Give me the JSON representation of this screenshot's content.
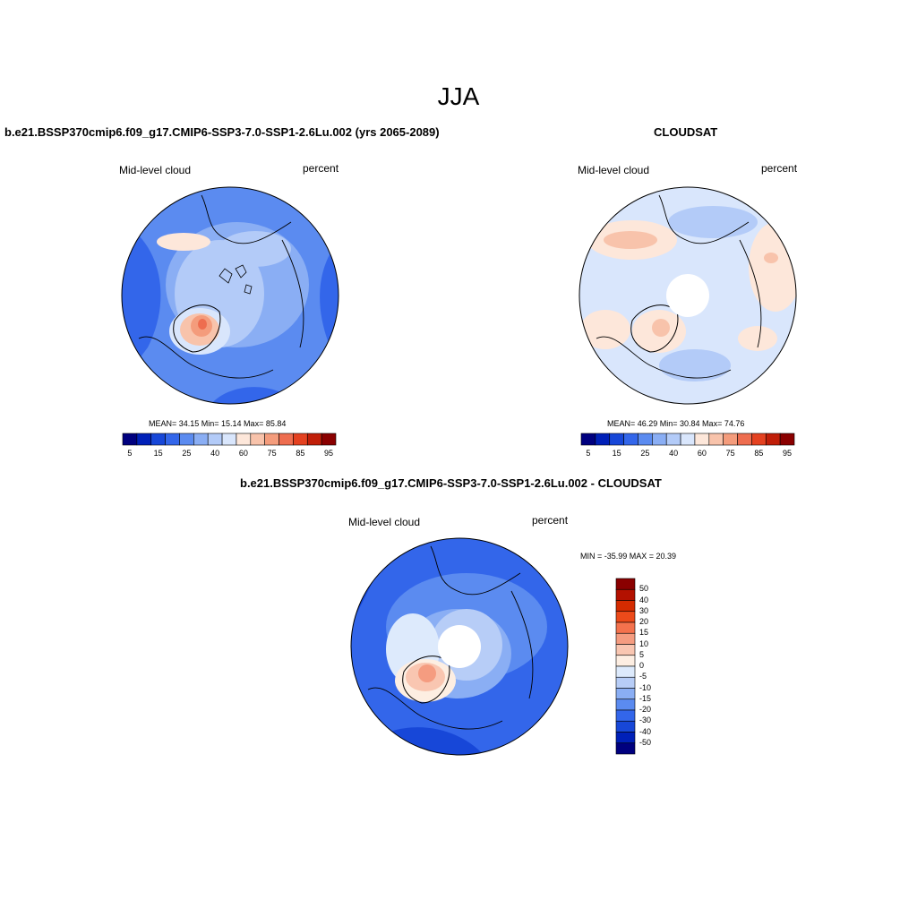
{
  "figure": {
    "season": "JJA",
    "panels": [
      {
        "title": "b.e21.BSSP370cmip6.f09_g17.CMIP6-SSP3-7.0-SSP1-2.6Lu.002 (yrs 2065-2089)",
        "left_label": "Mid-level cloud",
        "right_label": "percent",
        "stats": "MEAN=  34.15  Min=  15.14  Max=  85.84",
        "colorbar_ticks": [
          "5",
          "15",
          "25",
          "40",
          "60",
          "75",
          "85",
          "95"
        ]
      },
      {
        "title": "CLOUDSAT",
        "left_label": "Mid-level cloud",
        "right_label": "percent",
        "stats": "MEAN=  46.29  Min=  30.84  Max=  74.76",
        "colorbar_ticks": [
          "5",
          "15",
          "25",
          "40",
          "60",
          "75",
          "85",
          "95"
        ]
      },
      {
        "title": "b.e21.BSSP370cmip6.f09_g17.CMIP6-SSP3-7.0-SSP1-2.6Lu.002 - CLOUDSAT",
        "left_label": "Mid-level cloud",
        "right_label": "percent",
        "stats": "MIN = -35.99 MAX =  20.39",
        "colorbar_ticks": [
          "50",
          "40",
          "30",
          "20",
          "15",
          "10",
          "5",
          "0",
          "-5",
          "-10",
          "-15",
          "-20",
          "-30",
          "-40",
          "-50"
        ]
      }
    ]
  },
  "colors": {
    "abs_scale": [
      "#00007f",
      "#0020b8",
      "#1747d8",
      "#3366ea",
      "#5b8bf0",
      "#8aaef4",
      "#b3cbf8",
      "#d9e6fc",
      "#fde7da",
      "#f8c3ab",
      "#f49c7c",
      "#ee6d4f",
      "#e44120",
      "#c01e08",
      "#8a0000"
    ],
    "diff_scale": [
      "#8a0000",
      "#b31100",
      "#d42b00",
      "#ec4a1a",
      "#f4724d",
      "#f59c80",
      "#f9c6b1",
      "#fdeee2",
      "#ddeafc",
      "#b7cdf7",
      "#8aaef4",
      "#5b8bf0",
      "#3366ea",
      "#1747d8",
      "#0020b8",
      "#00007f"
    ],
    "land_outline": "#000000"
  }
}
